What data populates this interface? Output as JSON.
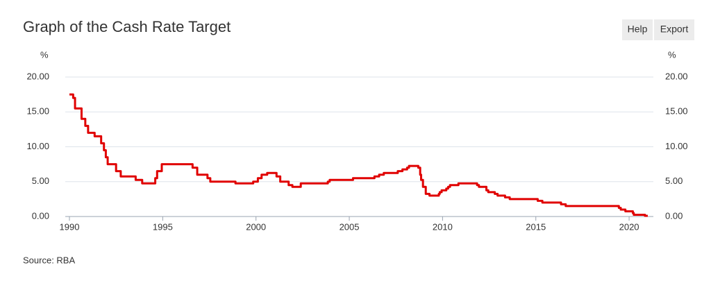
{
  "buttons": [
    "Help",
    "Export"
  ],
  "chart_data": {
    "type": "line",
    "title": "Graph of the Cash Rate Target",
    "source": "Source: RBA",
    "ylabel": "%",
    "y2label": "%",
    "color": "#e00000",
    "grid": true,
    "xlim": [
      1990,
      2021.3
    ],
    "xticks": [
      1990,
      1995,
      2000,
      2005,
      2010,
      2015,
      2020
    ],
    "ylim": [
      0,
      20
    ],
    "yticks": [
      {
        "value": 0,
        "label": "0.00"
      },
      {
        "value": 5,
        "label": "5.00"
      },
      {
        "value": 10,
        "label": "10.00"
      },
      {
        "value": 15,
        "label": "15.00"
      },
      {
        "value": 20,
        "label": "20.00"
      }
    ],
    "y2lim": [
      0,
      20
    ],
    "y2ticks": [
      {
        "value": 0,
        "label": "0.00"
      },
      {
        "value": 5,
        "label": "5.00"
      },
      {
        "value": 10,
        "label": "10.00"
      },
      {
        "value": 15,
        "label": "15.00"
      },
      {
        "value": 20,
        "label": "20.00"
      }
    ],
    "x": [
      1990.0,
      1990.2,
      1990.2,
      1990.3,
      1990.3,
      1990.65,
      1990.65,
      1990.85,
      1990.85,
      1991.0,
      1991.0,
      1991.35,
      1991.35,
      1991.7,
      1991.7,
      1991.85,
      1991.85,
      1991.95,
      1991.95,
      1992.05,
      1992.05,
      1992.5,
      1992.5,
      1992.75,
      1992.75,
      1993.55,
      1993.55,
      1993.9,
      1993.9,
      1994.6,
      1994.6,
      1994.7,
      1994.7,
      1994.95,
      1994.95,
      1996.6,
      1996.6,
      1996.85,
      1996.85,
      1997.4,
      1997.4,
      1997.55,
      1997.55,
      1998.9,
      1998.9,
      1999.85,
      1999.85,
      2000.1,
      2000.1,
      2000.3,
      2000.3,
      2000.6,
      2000.6,
      2001.1,
      2001.1,
      2001.3,
      2001.3,
      2001.75,
      2001.75,
      2001.95,
      2001.95,
      2002.4,
      2002.4,
      2003.85,
      2003.85,
      2003.95,
      2003.95,
      2005.2,
      2005.2,
      2006.35,
      2006.35,
      2006.6,
      2006.6,
      2006.85,
      2006.85,
      2007.6,
      2007.6,
      2007.85,
      2007.85,
      2008.1,
      2008.1,
      2008.2,
      2008.2,
      2008.7,
      2008.7,
      2008.8,
      2008.8,
      2008.85,
      2008.85,
      2008.95,
      2008.95,
      2009.1,
      2009.1,
      2009.3,
      2009.3,
      2009.8,
      2009.8,
      2009.85,
      2009.85,
      2009.95,
      2009.95,
      2010.2,
      2010.2,
      2010.3,
      2010.3,
      2010.4,
      2010.4,
      2010.85,
      2010.85,
      2011.85,
      2011.85,
      2011.95,
      2011.95,
      2012.35,
      2012.35,
      2012.45,
      2012.45,
      2012.8,
      2012.8,
      2012.95,
      2012.95,
      2013.35,
      2013.35,
      2013.6,
      2013.6,
      2015.1,
      2015.1,
      2015.35,
      2015.35,
      2016.35,
      2016.35,
      2016.6,
      2016.6,
      2019.45,
      2019.45,
      2019.55,
      2019.55,
      2019.8,
      2019.8,
      2020.2,
      2020.2,
      2020.25,
      2020.25,
      2020.85,
      2020.85,
      2021.0
    ],
    "values": [
      17.5,
      17.5,
      17.0,
      17.0,
      15.5,
      15.5,
      14.0,
      14.0,
      13.0,
      13.0,
      12.0,
      12.0,
      11.5,
      11.5,
      10.5,
      10.5,
      9.5,
      9.5,
      8.5,
      8.5,
      7.5,
      7.5,
      6.5,
      6.5,
      5.75,
      5.75,
      5.25,
      5.25,
      4.75,
      4.75,
      5.5,
      5.5,
      6.5,
      6.5,
      7.5,
      7.5,
      7.0,
      7.0,
      6.0,
      6.0,
      5.5,
      5.5,
      5.0,
      5.0,
      4.75,
      4.75,
      5.0,
      5.0,
      5.5,
      5.5,
      6.0,
      6.0,
      6.25,
      6.25,
      5.75,
      5.75,
      5.0,
      5.0,
      4.5,
      4.5,
      4.25,
      4.25,
      4.75,
      4.75,
      5.0,
      5.0,
      5.25,
      5.25,
      5.5,
      5.5,
      5.75,
      5.75,
      6.0,
      6.0,
      6.25,
      6.25,
      6.5,
      6.5,
      6.75,
      6.75,
      7.0,
      7.0,
      7.25,
      7.25,
      7.0,
      7.0,
      6.0,
      6.0,
      5.25,
      5.25,
      4.25,
      4.25,
      3.25,
      3.25,
      3.0,
      3.0,
      3.25,
      3.25,
      3.5,
      3.5,
      3.75,
      3.75,
      4.0,
      4.0,
      4.25,
      4.25,
      4.5,
      4.5,
      4.75,
      4.75,
      4.5,
      4.5,
      4.25,
      4.25,
      3.75,
      3.75,
      3.5,
      3.5,
      3.25,
      3.25,
      3.0,
      3.0,
      2.75,
      2.75,
      2.5,
      2.5,
      2.25,
      2.25,
      2.0,
      2.0,
      1.75,
      1.75,
      1.5,
      1.5,
      1.25,
      1.25,
      1.0,
      1.0,
      0.75,
      0.75,
      0.5,
      0.5,
      0.25,
      0.25,
      0.1,
      0.1
    ]
  }
}
